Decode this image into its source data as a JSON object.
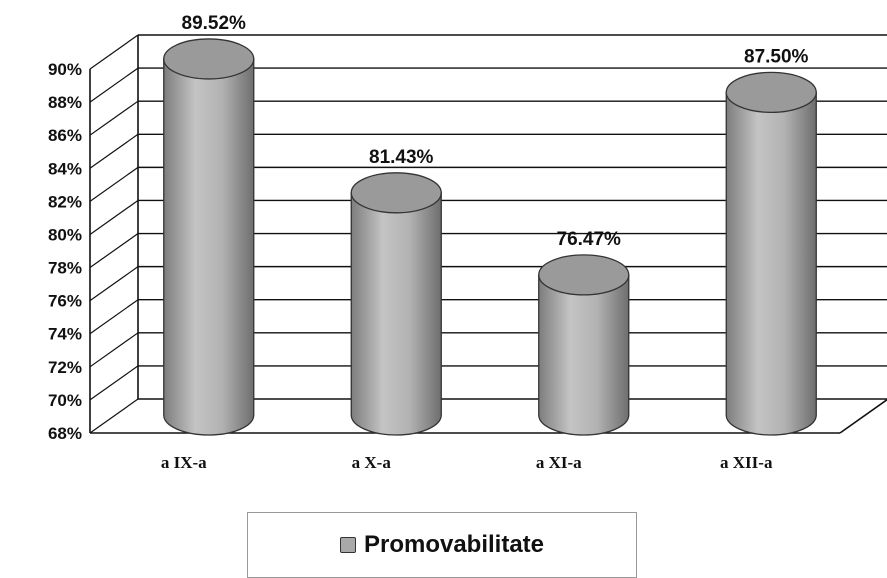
{
  "chart_data": {
    "type": "bar",
    "categories": [
      "a IX-a",
      "a X-a",
      "a XI-a",
      "a XII-a"
    ],
    "series": [
      {
        "name": "Promovabilitate",
        "values": [
          89.52,
          81.43,
          76.47,
          87.5
        ]
      }
    ],
    "data_labels": [
      "89.52%",
      "81.43%",
      "76.47%",
      "87.50%"
    ],
    "y_ticks": [
      "68%",
      "70%",
      "72%",
      "74%",
      "76%",
      "78%",
      "80%",
      "82%",
      "84%",
      "86%",
      "88%",
      "90%"
    ],
    "ylim": [
      68,
      90
    ],
    "grid": true,
    "legend_position": "bottom",
    "bar_color": "#a9a9a9"
  },
  "legend": {
    "label": "Promovabilitate"
  }
}
